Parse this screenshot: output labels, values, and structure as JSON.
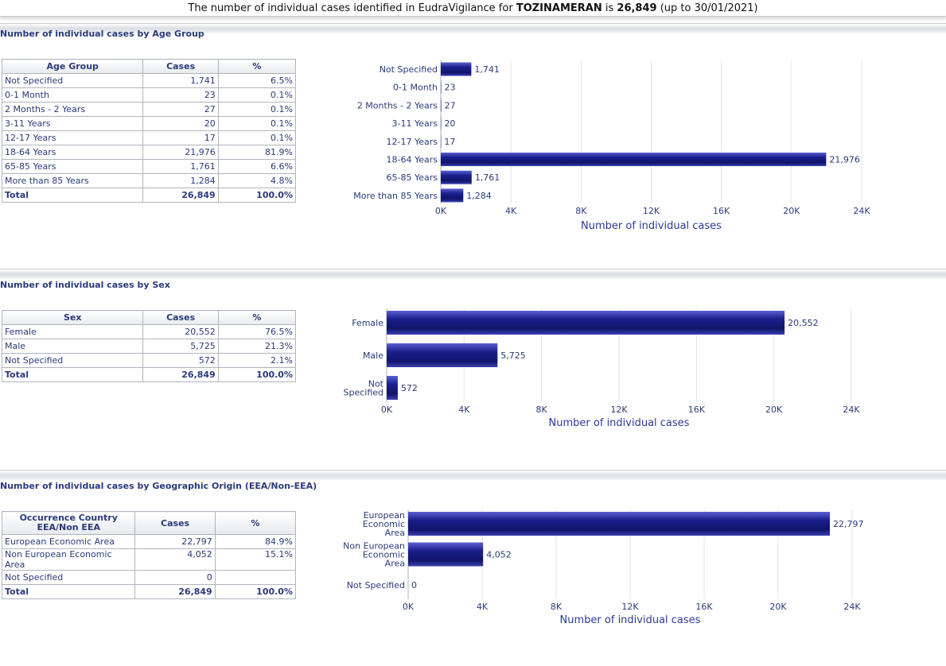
{
  "banner": {
    "prefix": "The number of individual cases identified in EudraVigilance for",
    "product": "TOZINAMERAN",
    "is": "is",
    "total": "26,849",
    "suffix": "(up to 30/01/2021)"
  },
  "sections": {
    "age": {
      "title": "Number of individual cases by Age Group",
      "headers": [
        "Age Group",
        "Cases",
        "%"
      ],
      "rows": [
        [
          "Not Specified",
          "1,741",
          "6.5%"
        ],
        [
          "0-1 Month",
          "23",
          "0.1%"
        ],
        [
          "2 Months - 2 Years",
          "27",
          "0.1%"
        ],
        [
          "3-11 Years",
          "20",
          "0.1%"
        ],
        [
          "12-17 Years",
          "17",
          "0.1%"
        ],
        [
          "18-64 Years",
          "21,976",
          "81.9%"
        ],
        [
          "65-85 Years",
          "1,761",
          "6.6%"
        ],
        [
          "More than 85 Years",
          "1,284",
          "4.8%"
        ]
      ],
      "total": [
        "Total",
        "26,849",
        "100.0%"
      ]
    },
    "sex": {
      "title": "Number of individual cases by Sex",
      "headers": [
        "Sex",
        "Cases",
        "%"
      ],
      "rows": [
        [
          "Female",
          "20,552",
          "76.5%"
        ],
        [
          "Male",
          "5,725",
          "21.3%"
        ],
        [
          "Not Specified",
          "572",
          "2.1%"
        ]
      ],
      "total": [
        "Total",
        "26,849",
        "100.0%"
      ]
    },
    "geo": {
      "title": "Number of individual cases by Geographic Origin (EEA/Non-EEA)",
      "headers": [
        "Occurrence Country EEA/Non EEA",
        "Cases",
        "%"
      ],
      "rows": [
        [
          "European Economic Area",
          "22,797",
          "84.9%"
        ],
        [
          "Non European Economic Area",
          "4,052",
          "15.1%"
        ],
        [
          "Not Specified",
          "0",
          ""
        ]
      ],
      "total": [
        "Total",
        "26,849",
        "100.0%"
      ]
    }
  },
  "chart_data": [
    {
      "type": "bar",
      "orientation": "horizontal",
      "categories": [
        "Not Specified",
        "0-1 Month",
        "2 Months - 2 Years",
        "3-11 Years",
        "12-17 Years",
        "18-64 Years",
        "65-85 Years",
        "More than 85 Years"
      ],
      "values": [
        1741,
        23,
        27,
        20,
        17,
        21976,
        1761,
        1284
      ],
      "value_labels": [
        "1,741",
        "23",
        "27",
        "20",
        "17",
        "21,976",
        "1,761",
        "1,284"
      ],
      "xlabel": "Number of individual cases",
      "xlim": [
        0,
        24000
      ],
      "ticks": [
        "0K",
        "4K",
        "8K",
        "12K",
        "16K",
        "20K",
        "24K"
      ],
      "grid": true,
      "bar_color": "#1a1f8c"
    },
    {
      "type": "bar",
      "orientation": "horizontal",
      "categories": [
        "Female",
        "Male",
        "Not Specified"
      ],
      "category_lines": [
        [
          "Female"
        ],
        [
          "Male"
        ],
        [
          "Not",
          "Specified"
        ]
      ],
      "values": [
        20552,
        5725,
        572
      ],
      "value_labels": [
        "20,552",
        "5,725",
        "572"
      ],
      "xlabel": "Number of individual cases",
      "xlim": [
        0,
        24000
      ],
      "ticks": [
        "0K",
        "4K",
        "8K",
        "12K",
        "16K",
        "20K",
        "24K"
      ],
      "grid": true,
      "bar_color": "#1a1f8c"
    },
    {
      "type": "bar",
      "orientation": "horizontal",
      "categories": [
        "European Economic Area",
        "Non European Economic Area",
        "Not Specified"
      ],
      "category_lines": [
        [
          "European",
          "Economic",
          "Area"
        ],
        [
          "Non European",
          "Economic",
          "Area"
        ],
        [
          "Not Specified"
        ]
      ],
      "values": [
        22797,
        4052,
        0
      ],
      "value_labels": [
        "22,797",
        "4,052",
        "0"
      ],
      "xlabel": "Number of individual cases",
      "xlim": [
        0,
        24000
      ],
      "ticks": [
        "0K",
        "4K",
        "8K",
        "12K",
        "16K",
        "20K",
        "24K"
      ],
      "grid": true,
      "bar_color": "#1a1f8c"
    }
  ]
}
